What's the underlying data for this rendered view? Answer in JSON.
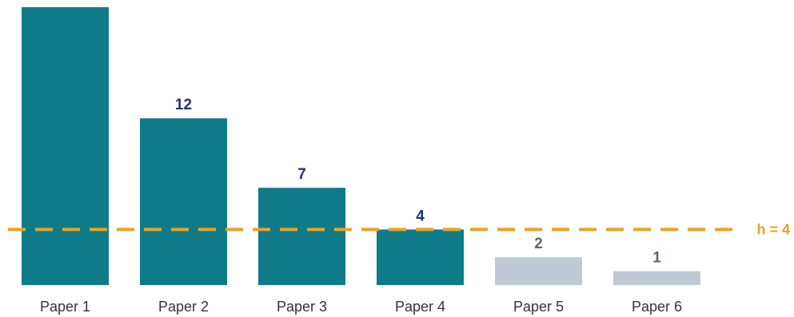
{
  "chart_data": {
    "type": "bar",
    "categories": [
      "Paper 1",
      "Paper 2",
      "Paper 3",
      "Paper 4",
      "Paper 5",
      "Paper 6"
    ],
    "values": [
      20,
      12,
      7,
      4,
      2,
      1
    ],
    "data_labels": [
      "",
      "12",
      "7",
      "4",
      "2",
      "1"
    ],
    "reference_line": {
      "value": 4,
      "label": "h = 4",
      "style": "dashed"
    },
    "ylim": [
      0,
      20
    ],
    "grid": false,
    "title": "",
    "xlabel": "",
    "ylabel": ""
  },
  "colors": {
    "bar_in_core": "#0f7b89",
    "bar_out_core": "#bfcad5",
    "reference_line": "#e8a425",
    "value_label_in_core": "#1f3864",
    "value_label_out_core": "#5a6778",
    "tick_label": "#333333"
  }
}
